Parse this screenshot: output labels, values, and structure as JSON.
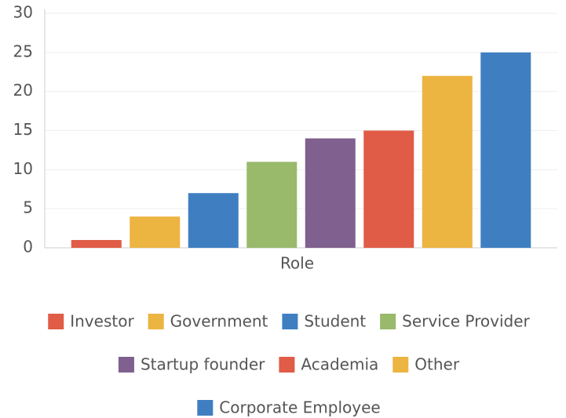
{
  "chart_data": {
    "type": "bar",
    "categories": [
      "Role"
    ],
    "series": [
      {
        "name": "Investor",
        "color": "#e05c46",
        "values": [
          1
        ]
      },
      {
        "name": "Government",
        "color": "#ecb441",
        "values": [
          4
        ]
      },
      {
        "name": "Student",
        "color": "#3f7fc1",
        "values": [
          7
        ]
      },
      {
        "name": "Service Provider",
        "color": "#99b96b",
        "values": [
          11
        ]
      },
      {
        "name": "Startup founder",
        "color": "#7f608e",
        "values": [
          14
        ]
      },
      {
        "name": "Academia",
        "color": "#e05c46",
        "values": [
          15
        ]
      },
      {
        "name": "Other",
        "color": "#ecb441",
        "values": [
          22
        ]
      },
      {
        "name": "Corporate Employee",
        "color": "#3f7fc1",
        "values": [
          25
        ]
      }
    ],
    "ylim": [
      0,
      30
    ],
    "yticks": [
      0,
      5,
      10,
      15,
      20,
      25,
      30
    ],
    "grid": true,
    "legend": "bottom"
  }
}
